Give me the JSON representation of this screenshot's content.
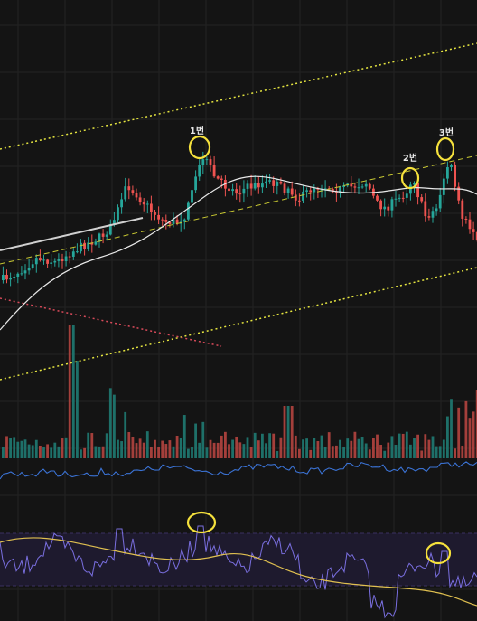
{
  "chart": {
    "type": "candlestick",
    "colors": {
      "background": "#141414",
      "grid": "#232323",
      "up": "#26a69a",
      "down": "#ef5350",
      "ma": "#e8e8e8",
      "channel": "#e5e540",
      "midline": "#c8c832",
      "resistance": "#d0d0d0",
      "support": "#d84a5a",
      "highlight": "#f5e13c",
      "indicator": "#3b73d6",
      "rsi": "#7a6fe0",
      "rsi_ma": "#e0c050",
      "rsi_band": "#3a3060",
      "rsi_bg": "#1e1a2e"
    },
    "annotations": [
      {
        "label": "1번",
        "target": "peak-1"
      },
      {
        "label": "2번",
        "target": "peak-2"
      },
      {
        "label": "3번",
        "target": "peak-3"
      }
    ]
  }
}
